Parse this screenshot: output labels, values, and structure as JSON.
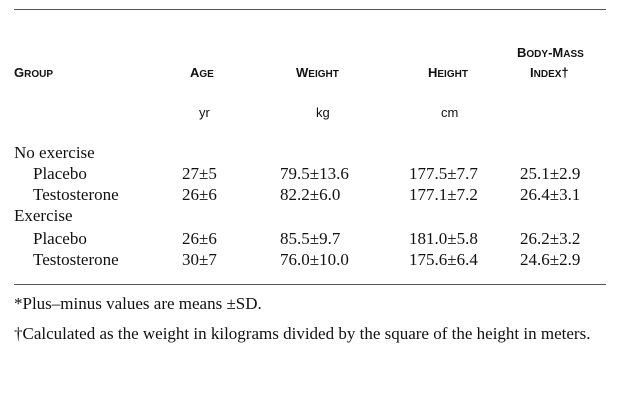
{
  "table": {
    "headers": {
      "group": "Group",
      "age": "Age",
      "weight": "Weight",
      "height": "Height",
      "bmi_line1": "Body-Mass",
      "bmi_line2": "Index†"
    },
    "units": {
      "age": "yr",
      "weight": "kg",
      "height": "cm"
    },
    "sections": [
      {
        "label": "No exercise",
        "rows": [
          {
            "group": "Placebo",
            "age": "27±5",
            "weight": "79.5±13.6",
            "height": "177.5±7.7",
            "bmi": "25.1±2.9"
          },
          {
            "group": "Testosterone",
            "age": "26±6",
            "weight": "82.2±6.0",
            "height": "177.1±7.2",
            "bmi": "26.4±3.1"
          }
        ]
      },
      {
        "label": "Exercise",
        "rows": [
          {
            "group": "Placebo",
            "age": "26±6",
            "weight": "85.5±9.7",
            "height": "181.0±5.8",
            "bmi": "26.2±3.2"
          },
          {
            "group": "Testosterone",
            "age": "30±7",
            "weight": "76.0±10.0",
            "height": "175.6±6.4",
            "bmi": "24.6±2.9"
          }
        ]
      }
    ]
  },
  "footnotes": {
    "note1": "*Plus–minus values are means ±SD.",
    "note2": "†Calculated as the weight in kilograms divided by the square of the height in meters."
  }
}
